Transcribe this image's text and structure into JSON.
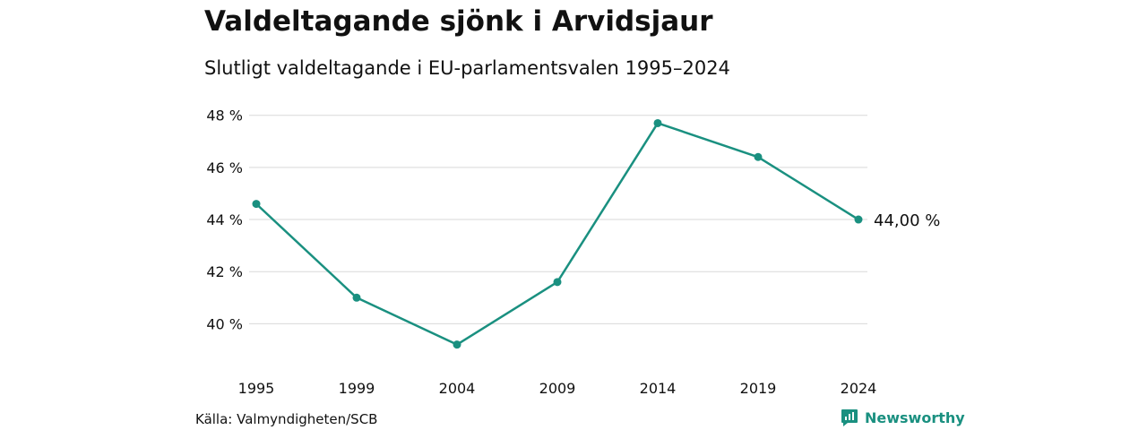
{
  "header": {
    "title": "Valdeltagande sjönk i Arvidsjaur",
    "subtitle": "Slutligt valdeltagande i EU-parlamentsvalen 1995–2024"
  },
  "footer": {
    "source": "Källa: Valmyndigheten/SCB",
    "brand": "Newsworthy",
    "brand_icon": "newsworthy-logo-icon"
  },
  "colors": {
    "line": "#1a9080",
    "grid": "#d9d9d9",
    "text": "#111111"
  },
  "chart_data": {
    "type": "line",
    "title": "Valdeltagande sjönk i Arvidsjaur",
    "subtitle": "Slutligt valdeltagande i EU-parlamentsvalen 1995–2024",
    "xlabel": "",
    "ylabel": "",
    "categories": [
      "1995",
      "1999",
      "2004",
      "2009",
      "2014",
      "2019",
      "2024"
    ],
    "series": [
      {
        "values": [
          44.6,
          41.0,
          39.2,
          41.6,
          47.7,
          46.4,
          44.0
        ]
      }
    ],
    "ylim": [
      38.5,
      48.3
    ],
    "yticks": [
      40,
      42,
      44,
      46,
      48
    ],
    "ytick_labels": [
      "40 %",
      "42 %",
      "44 %",
      "46 %",
      "48 %"
    ],
    "grid": true,
    "legend": "none",
    "end_label": "44,00 %"
  }
}
